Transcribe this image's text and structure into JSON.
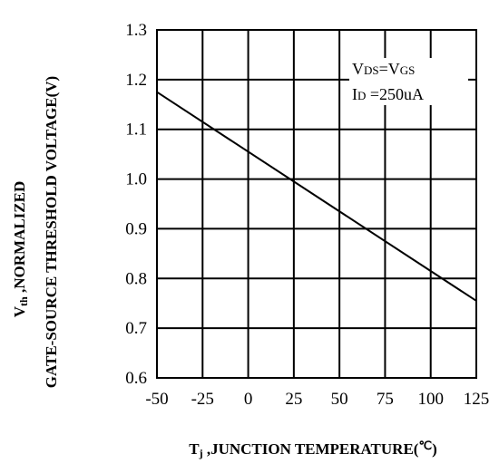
{
  "chart_data": {
    "type": "line",
    "xlabel": {
      "symbol": "T",
      "subscript": "j",
      "rest": " ,JUNCTION TEMPERATURE(",
      "unit": "℃",
      "close": ")"
    },
    "ylabel": {
      "line1_symbol": "V",
      "line1_subscript": "th",
      "line1_rest": " ,NORMALIZED",
      "line2": "GATE-SOURCE THRESHOLD VOLTAGE(V)"
    },
    "xlim": [
      -50,
      125
    ],
    "ylim": [
      0.6,
      1.3
    ],
    "x_ticks": [
      -50,
      -25,
      0,
      25,
      50,
      75,
      100,
      125
    ],
    "y_ticks": [
      "0.6",
      "0.7",
      "0.8",
      "0.9",
      "1.0",
      "1.1",
      "1.2",
      "1.3"
    ],
    "grid": true,
    "series": [
      {
        "x": [
          -50,
          125
        ],
        "y": [
          1.175,
          0.755
        ]
      }
    ],
    "annotations": {
      "cond1": {
        "main1": "V",
        "sub1": "DS",
        "eq": "=V",
        "sub2": "GS"
      },
      "cond2": {
        "main1": "I",
        "sub1": "D",
        "rest": " =250uA"
      }
    }
  }
}
